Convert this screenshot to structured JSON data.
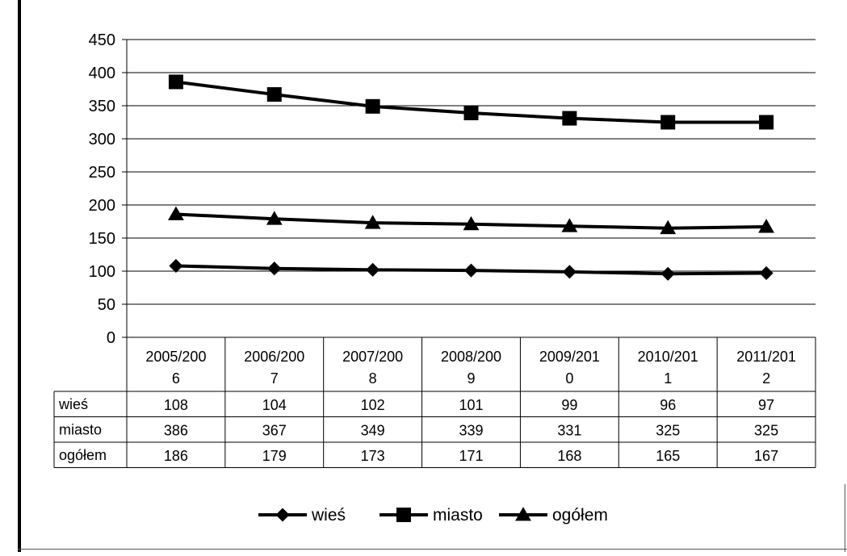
{
  "chart_data": {
    "type": "line",
    "categories": [
      [
        "2005/200",
        "6"
      ],
      [
        "2006/200",
        "7"
      ],
      [
        "2007/200",
        "8"
      ],
      [
        "2008/200",
        "9"
      ],
      [
        "2009/201",
        "0"
      ],
      [
        "2010/201",
        "1"
      ],
      [
        "2011/201",
        "2"
      ]
    ],
    "series": [
      {
        "name": "wieś",
        "marker": "diamond",
        "values": [
          108,
          104,
          102,
          101,
          99,
          96,
          97
        ]
      },
      {
        "name": "miasto",
        "marker": "square",
        "values": [
          386,
          367,
          349,
          339,
          331,
          325,
          325
        ]
      },
      {
        "name": "ogółem",
        "marker": "triangle",
        "values": [
          186,
          179,
          173,
          171,
          168,
          165,
          167
        ]
      }
    ],
    "ylim": [
      0,
      450
    ],
    "yticks": [
      0,
      50,
      100,
      150,
      200,
      250,
      300,
      350,
      400,
      450
    ],
    "grid": true,
    "legend_position": "bottom",
    "data_table": true,
    "line_color": "#000000"
  }
}
